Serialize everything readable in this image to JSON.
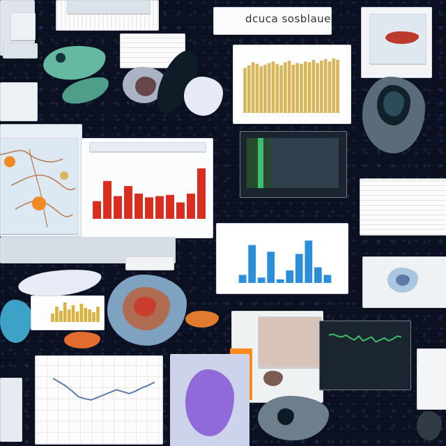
{
  "top_center_title": "dcuca sosblaue",
  "colors": {
    "background": "#0b1020",
    "panel": "#f4f6f8",
    "red_bar": "#d92d20",
    "orange": "#f08a24",
    "blue": "#2c8ed8",
    "gold": "#d8b55a",
    "green": "#3dbf6a",
    "purple": "#8f6ad8"
  },
  "charts": {
    "gold_bars": {
      "type": "bar",
      "values": [
        55,
        58,
        62,
        60,
        57,
        59,
        61,
        63,
        60,
        58,
        62,
        64,
        59,
        61,
        60,
        63,
        62,
        65,
        61,
        64,
        66,
        63,
        67,
        65
      ]
    },
    "red_bars": {
      "type": "bar",
      "values": [
        14,
        30,
        18,
        26,
        20,
        17,
        18,
        19,
        13,
        20,
        40
      ]
    },
    "blue_bars": {
      "type": "bar",
      "values": [
        18,
        85,
        12,
        70,
        8,
        28,
        65,
        95,
        35,
        18
      ]
    },
    "yellow_mini_bars": {
      "type": "bar",
      "values": [
        12,
        22,
        16,
        28,
        18,
        24,
        15,
        26,
        20,
        18,
        14,
        22
      ]
    },
    "line_plot": {
      "type": "line",
      "values": [
        78,
        72,
        66,
        58,
        49,
        46,
        44,
        48,
        52,
        56,
        60,
        57,
        54,
        58,
        63,
        67,
        72
      ]
    },
    "green_wave": {
      "type": "line",
      "values": [
        40,
        41,
        39,
        38,
        40,
        37,
        35,
        39,
        34,
        36,
        38,
        33,
        35,
        37,
        34,
        36,
        39,
        38
      ]
    }
  }
}
